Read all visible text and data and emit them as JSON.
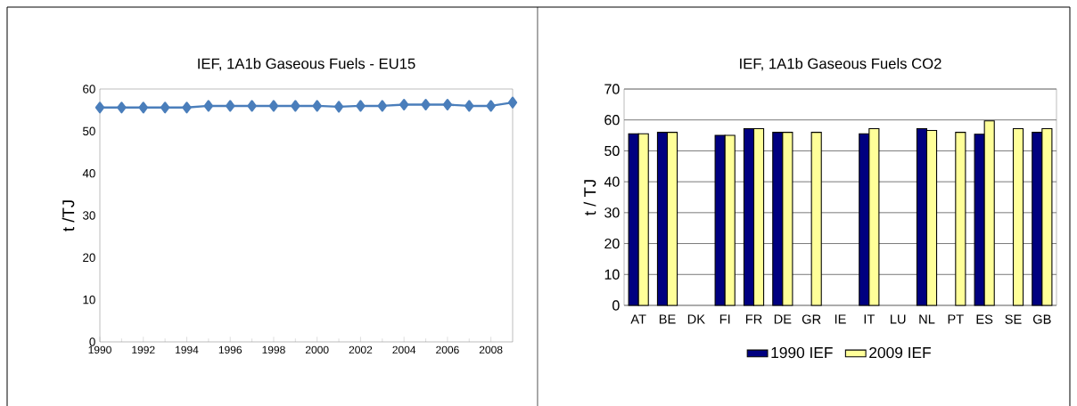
{
  "chart_data": [
    {
      "type": "line",
      "title": "IEF, 1A1b Gaseous Fuels -  EU15",
      "ylabel": "t /TJ",
      "x": [
        1990,
        1991,
        1992,
        1993,
        1994,
        1995,
        1996,
        1997,
        1998,
        1999,
        2000,
        2001,
        2002,
        2003,
        2004,
        2005,
        2006,
        2007,
        2008,
        2009
      ],
      "series": [
        {
          "color": "#4a7ebb",
          "values": [
            55.6,
            55.6,
            55.6,
            55.6,
            55.6,
            56.0,
            56.0,
            56.0,
            56.0,
            56.0,
            56.0,
            55.8,
            56.0,
            56.0,
            56.3,
            56.3,
            56.3,
            56.0,
            56.0,
            56.8
          ]
        }
      ],
      "xlim": [
        1990,
        2009
      ],
      "xticks": [
        1990,
        1992,
        1994,
        1996,
        1998,
        2000,
        2002,
        2004,
        2006,
        2008
      ],
      "ylim": [
        0,
        60
      ],
      "yticks": [
        0,
        10,
        20,
        30,
        40,
        50,
        60
      ],
      "marker": "diamond",
      "line_style": "solid",
      "grid": false,
      "legend": false
    },
    {
      "type": "bar",
      "title": "IEF, 1A1b Gaseous Fuels CO2",
      "ylabel": "t / TJ",
      "categories": [
        "AT",
        "BE",
        "DK",
        "FI",
        "FR",
        "DE",
        "GR",
        "IE",
        "IT",
        "LU",
        "NL",
        "PT",
        "ES",
        "SE",
        "GB"
      ],
      "series": [
        {
          "name": "1990 IEF",
          "color": "#000080",
          "values": [
            55.5,
            56.0,
            null,
            55.0,
            57.2,
            56.0,
            null,
            null,
            55.5,
            null,
            57.2,
            null,
            55.4,
            null,
            56.0
          ]
        },
        {
          "name": "2009 IEF",
          "color": "#ffff99",
          "values": [
            55.5,
            56.0,
            null,
            55.0,
            57.2,
            56.0,
            56.0,
            null,
            57.2,
            null,
            56.6,
            56.0,
            59.7,
            57.2,
            57.2
          ]
        }
      ],
      "ylim": [
        0,
        70
      ],
      "yticks": [
        0,
        10,
        20,
        30,
        40,
        50,
        60,
        70
      ],
      "grid": "y",
      "legend": "bottom"
    }
  ]
}
